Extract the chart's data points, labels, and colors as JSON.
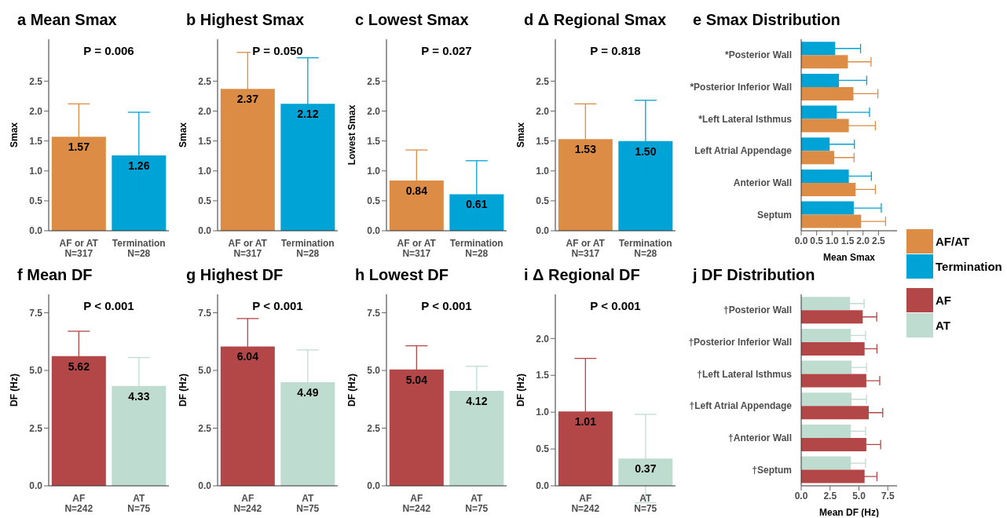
{
  "chart_data": [
    {
      "type": "bar",
      "title": "a  Mean Smax",
      "ylabel": "Smax",
      "annotations": [
        "P = 0.006"
      ],
      "categories": [
        "AF or AT\nN=317",
        "Termination\nN=28"
      ],
      "values": [
        1.57,
        1.26
      ],
      "colors": [
        "#dd8c45",
        "#00a3d6"
      ],
      "errors": [
        0.55,
        0.72
      ],
      "value_labels": [
        "1.57",
        "1.26"
      ],
      "ylim": [
        0,
        3.2
      ],
      "yticks": [
        {
          "value": 0,
          "label": "0.0"
        },
        0.5,
        {
          "value": 1,
          "label": "1.0"
        },
        1.5,
        {
          "value": 2,
          "label": "2.0"
        },
        2.5
      ]
    },
    {
      "type": "bar",
      "title": "b  Highest Smax",
      "ylabel": "Smax",
      "annotations": [
        "P = 0.050"
      ],
      "categories": [
        "AF or AT\nN=317",
        "Termination\nN=28"
      ],
      "values": [
        2.37,
        2.12
      ],
      "colors": [
        "#dd8c45",
        "#00a3d6"
      ],
      "errors": [
        0.61,
        0.77
      ],
      "value_labels": [
        "2.37",
        "2.12"
      ],
      "ylim": [
        0,
        3.2
      ],
      "yticks": [
        {
          "value": 0,
          "label": "0.0"
        },
        0.5,
        {
          "value": 1,
          "label": "1.0"
        },
        1.5,
        {
          "value": 2,
          "label": "2.0"
        },
        2.5
      ]
    },
    {
      "type": "bar",
      "title": "c  Lowest Smax",
      "ylabel": "Lowest Smax",
      "annotations": [
        "P = 0.027"
      ],
      "categories": [
        "AF or AT\nN=317",
        "Termination\nN=28"
      ],
      "values": [
        0.84,
        0.61
      ],
      "colors": [
        "#dd8c45",
        "#00a3d6"
      ],
      "errors": [
        0.51,
        0.56
      ],
      "value_labels": [
        "0.84",
        "0.61"
      ],
      "ylim": [
        0,
        3.2
      ],
      "yticks": [
        {
          "value": 0,
          "label": "0.0"
        },
        0.5,
        {
          "value": 1,
          "label": "1.0"
        },
        1.5,
        {
          "value": 2,
          "label": "2.0"
        },
        2.5
      ]
    },
    {
      "type": "bar",
      "title": "d  Δ Regional Smax",
      "ylabel": "Smax",
      "annotations": [
        "P = 0.818"
      ],
      "categories": [
        "AF or AT\nN=317",
        "Termination\nN=28"
      ],
      "values": [
        1.53,
        1.5
      ],
      "colors": [
        "#dd8c45",
        "#00a3d6"
      ],
      "errors": [
        0.59,
        0.68
      ],
      "value_labels": [
        "1.53",
        "1.50"
      ],
      "ylim": [
        0,
        3.2
      ],
      "yticks": [
        {
          "value": 0,
          "label": "0.0"
        },
        0.5,
        {
          "value": 1,
          "label": "1.0"
        },
        1.5,
        {
          "value": 2,
          "label": "2.0"
        },
        2.5
      ]
    },
    {
      "type": "bar",
      "orientation": "horizontal",
      "title": "e  Smax Distribution",
      "xlabel": "Mean Smax",
      "categories": [
        "*Posterior Wall",
        "*Posterior Inferior Wall",
        "*Left Lateral Isthmus",
        "Left Atrial Appendage",
        "Anterior Wall",
        "Septum"
      ],
      "legend": "right",
      "xlim": [
        0,
        3.1
      ],
      "xticks": [
        {
          "value": 0,
          "label": "0.0"
        },
        0.5,
        {
          "value": 1,
          "label": "1.0"
        },
        1.5,
        {
          "value": 2,
          "label": "2.0"
        },
        2.5
      ],
      "series": [
        {
          "name": "AF/AT",
          "color": "#dd8c45",
          "values": [
            1.51,
            1.69,
            1.54,
            1.07,
            1.76,
            1.94
          ],
          "errors": [
            0.75,
            0.79,
            0.86,
            0.64,
            0.64,
            0.79
          ]
        },
        {
          "name": "Termination",
          "color": "#00a3d6",
          "values": [
            1.1,
            1.22,
            1.15,
            0.92,
            1.54,
            1.7
          ],
          "errors": [
            0.82,
            0.9,
            1.06,
            0.8,
            0.73,
            0.89
          ]
        }
      ]
    },
    {
      "type": "bar",
      "title": "f  Mean DF",
      "ylabel": "DF (Hz)",
      "annotations": [
        "P < 0.001"
      ],
      "categories": [
        "AF\nN=242",
        "AT\nN=75"
      ],
      "values": [
        5.62,
        4.33
      ],
      "colors": [
        "#b34747",
        "#bfdcd0"
      ],
      "errors": [
        1.08,
        1.23
      ],
      "value_labels": [
        "5.62",
        "4.33"
      ],
      "ylim": [
        0,
        8.3
      ],
      "yticks": [
        {
          "value": 0,
          "label": "0.0"
        },
        2.5,
        {
          "value": 5,
          "label": "5.0"
        },
        7.5
      ]
    },
    {
      "type": "bar",
      "title": "g  Highest DF",
      "ylabel": "DF (Hz)",
      "annotations": [
        "P < 0.001"
      ],
      "categories": [
        "AF\nN=242",
        "AT\nN=75"
      ],
      "values": [
        6.04,
        4.49
      ],
      "colors": [
        "#b34747",
        "#bfdcd0"
      ],
      "errors": [
        1.21,
        1.4
      ],
      "value_labels": [
        "6.04",
        "4.49"
      ],
      "ylim": [
        0,
        8.3
      ],
      "yticks": [
        {
          "value": 0,
          "label": "0.0"
        },
        2.5,
        {
          "value": 5,
          "label": "5.0"
        },
        7.5
      ]
    },
    {
      "type": "bar",
      "title": "h  Lowest DF",
      "ylabel": "DF (Hz)",
      "annotations": [
        "P < 0.001"
      ],
      "categories": [
        "AF\nN=242",
        "AT\nN=75"
      ],
      "values": [
        5.04,
        4.12
      ],
      "colors": [
        "#b34747",
        "#bfdcd0"
      ],
      "errors": [
        1.03,
        1.06
      ],
      "value_labels": [
        "5.04",
        "4.12"
      ],
      "ylim": [
        0,
        8.3
      ],
      "yticks": [
        {
          "value": 0,
          "label": "0.0"
        },
        2.5,
        {
          "value": 5,
          "label": "5.0"
        },
        7.5
      ]
    },
    {
      "type": "bar",
      "title": "i  Δ Regional DF",
      "ylabel": "DF (Hz)",
      "annotations": [
        "P < 0.001"
      ],
      "categories": [
        "AF\nN=242",
        "AT\nN=75"
      ],
      "values": [
        1.01,
        0.37
      ],
      "colors": [
        "#b34747",
        "#bfdcd0"
      ],
      "errors": [
        0.72,
        0.6
      ],
      "value_labels": [
        "1.01",
        "0.37"
      ],
      "ylim": [
        0,
        2.6
      ],
      "yticks": [
        {
          "value": 0,
          "label": "0.0"
        },
        0.5,
        {
          "value": 1,
          "label": "1.0"
        },
        1.5,
        {
          "value": 2,
          "label": "2.0"
        }
      ]
    },
    {
      "type": "bar",
      "orientation": "horizontal",
      "title": "j  DF Distribution",
      "xlabel": "Mean DF (Hz)",
      "categories": [
        "†Posterior Wall",
        "†Posterior Inferior Wall",
        "†Left Lateral Isthmus",
        "†Left Atrial Appendage",
        "†Anterior Wall",
        "†Septum"
      ],
      "legend": "right",
      "xlim": [
        0,
        8.3
      ],
      "xticks": [
        {
          "value": 0,
          "label": "0.0"
        },
        2.5,
        {
          "value": 5,
          "label": "5.0"
        },
        7.5
      ],
      "series": [
        {
          "name": "AF",
          "color": "#b34747",
          "values": [
            5.33,
            5.49,
            5.64,
            5.85,
            5.64,
            5.49
          ],
          "errors": [
            1.21,
            1.07,
            1.16,
            1.21,
            1.24,
            1.07
          ]
        },
        {
          "name": "AT",
          "color": "#bfdcd0",
          "values": [
            4.23,
            4.3,
            4.36,
            4.36,
            4.3,
            4.3
          ],
          "errors": [
            1.22,
            1.27,
            1.3,
            1.3,
            1.27,
            1.27
          ]
        }
      ]
    }
  ]
}
